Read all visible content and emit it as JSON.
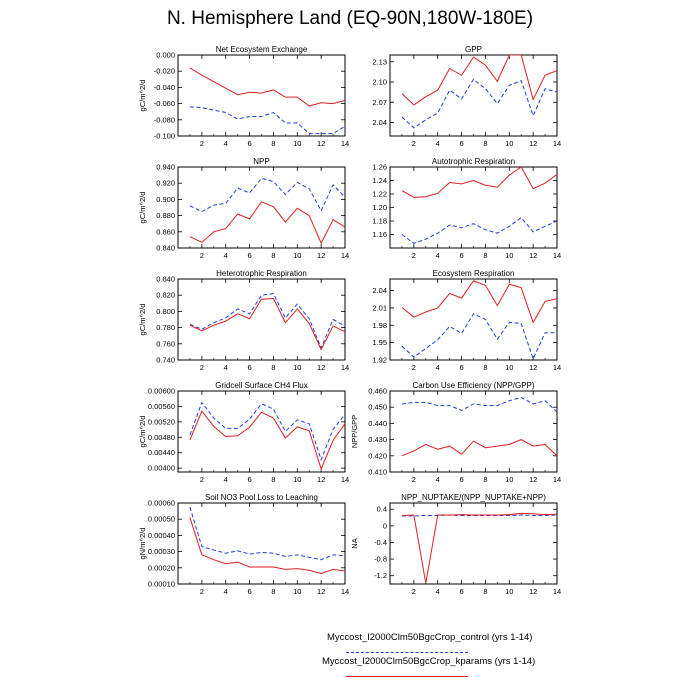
{
  "title": "N. Hemisphere Land (EQ-90N,180W-180E)",
  "colors": {
    "control": "#1f3fe0",
    "kparams": "#e01f1f"
  },
  "legend": {
    "control": "Myccost_I2000Clm50BgcCrop_control (yrs 1-14)",
    "kparams": "Myccost_I2000Clm50BgcCrop_kparams (yrs 1-14)"
  },
  "chart_data": [
    {
      "type": "line",
      "title": "Net Ecosystem Exchange",
      "ylabel": "gC/m^2/d",
      "xlabel": "",
      "xlim": [
        0,
        14
      ],
      "ylim": [
        -0.1,
        0.0
      ],
      "xticks": [
        2,
        4,
        6,
        8,
        10,
        12,
        14
      ],
      "xticklabels": [
        "2",
        "4",
        "6",
        "8",
        "10",
        "12",
        "14"
      ],
      "yticks": [
        -0.1,
        -0.08,
        -0.06,
        -0.04,
        -0.02,
        0.0
      ],
      "yticklabels": [
        "-0.100",
        "-0.080",
        "-0.060",
        "-0.040",
        "-0.020",
        "0.000"
      ],
      "x": [
        1,
        2,
        3,
        4,
        5,
        6,
        7,
        8,
        9,
        10,
        11,
        12,
        13,
        14
      ],
      "series": [
        {
          "name": "Myccost_I2000Clm50BgcCrop_control",
          "style": "dashed",
          "values": [
            -0.064,
            -0.065,
            -0.068,
            -0.071,
            -0.079,
            -0.076,
            -0.076,
            -0.071,
            -0.084,
            -0.084,
            -0.097,
            -0.097,
            -0.097,
            -0.088
          ]
        },
        {
          "name": "Myccost_I2000Clm50BgcCrop_kparams",
          "style": "solid",
          "values": [
            -0.016,
            -0.025,
            -0.033,
            -0.041,
            -0.049,
            -0.046,
            -0.047,
            -0.043,
            -0.052,
            -0.052,
            -0.063,
            -0.059,
            -0.06,
            -0.056
          ]
        }
      ]
    },
    {
      "type": "line",
      "title": "GPP",
      "ylabel": "",
      "xlabel": "",
      "xlim": [
        0,
        14
      ],
      "ylim": [
        2.02,
        2.14
      ],
      "xticks": [
        2,
        4,
        6,
        8,
        10,
        12,
        14
      ],
      "xticklabels": [
        "2",
        "4",
        "6",
        "8",
        "10",
        "12",
        "14"
      ],
      "yticks": [
        2.04,
        2.07,
        2.1,
        2.13
      ],
      "yticklabels": [
        "2.04",
        "2.07",
        "2.10",
        "2.13"
      ],
      "x": [
        1,
        2,
        3,
        4,
        5,
        6,
        7,
        8,
        9,
        10,
        11,
        12,
        13,
        14
      ],
      "series": [
        {
          "name": "Myccost_I2000Clm50BgcCrop_control",
          "style": "dashed",
          "values": [
            2.048,
            2.032,
            2.044,
            2.054,
            2.088,
            2.075,
            2.104,
            2.09,
            2.068,
            2.095,
            2.102,
            2.05,
            2.09,
            2.085
          ]
        },
        {
          "name": "Myccost_I2000Clm50BgcCrop_kparams",
          "style": "solid",
          "values": [
            2.083,
            2.066,
            2.078,
            2.088,
            2.12,
            2.11,
            2.137,
            2.125,
            2.101,
            2.14,
            2.14,
            2.074,
            2.11,
            2.117
          ]
        }
      ]
    },
    {
      "type": "line",
      "title": "NPP",
      "ylabel": "gC/m^2/d",
      "xlabel": "",
      "xlim": [
        0,
        14
      ],
      "ylim": [
        0.84,
        0.94
      ],
      "xticks": [
        2,
        4,
        6,
        8,
        10,
        12,
        14
      ],
      "xticklabels": [
        "2",
        "4",
        "6",
        "8",
        "10",
        "12",
        "14"
      ],
      "yticks": [
        0.84,
        0.86,
        0.88,
        0.9,
        0.92,
        0.94
      ],
      "yticklabels": [
        "0.840",
        "0.860",
        "0.880",
        "0.900",
        "0.920",
        "0.940"
      ],
      "x": [
        1,
        2,
        3,
        4,
        5,
        6,
        7,
        8,
        9,
        10,
        11,
        12,
        13,
        14
      ],
      "series": [
        {
          "name": "Myccost_I2000Clm50BgcCrop_control",
          "style": "dashed",
          "values": [
            0.892,
            0.885,
            0.893,
            0.895,
            0.914,
            0.908,
            0.926,
            0.922,
            0.906,
            0.921,
            0.913,
            0.886,
            0.918,
            0.903
          ]
        },
        {
          "name": "Myccost_I2000Clm50BgcCrop_kparams",
          "style": "solid",
          "values": [
            0.854,
            0.847,
            0.86,
            0.864,
            0.882,
            0.876,
            0.897,
            0.891,
            0.872,
            0.889,
            0.88,
            0.846,
            0.875,
            0.866
          ]
        }
      ]
    },
    {
      "type": "line",
      "title": "Autotrophic Respiration",
      "ylabel": "",
      "xlabel": "",
      "xlim": [
        0,
        14
      ],
      "ylim": [
        1.14,
        1.26
      ],
      "xticks": [
        2,
        4,
        6,
        8,
        10,
        12,
        14
      ],
      "xticklabels": [
        "2",
        "4",
        "6",
        "8",
        "10",
        "12",
        "14"
      ],
      "yticks": [
        1.16,
        1.18,
        1.2,
        1.22,
        1.24,
        1.26
      ],
      "yticklabels": [
        "1.16",
        "1.18",
        "1.20",
        "1.22",
        "1.24",
        "1.26"
      ],
      "x": [
        1,
        2,
        3,
        4,
        5,
        6,
        7,
        8,
        9,
        10,
        11,
        12,
        13,
        14
      ],
      "series": [
        {
          "name": "Myccost_I2000Clm50BgcCrop_control",
          "style": "dashed",
          "values": [
            1.16,
            1.147,
            1.153,
            1.162,
            1.174,
            1.17,
            1.176,
            1.167,
            1.162,
            1.172,
            1.185,
            1.164,
            1.172,
            1.18
          ]
        },
        {
          "name": "Myccost_I2000Clm50BgcCrop_kparams",
          "style": "solid",
          "values": [
            1.225,
            1.215,
            1.216,
            1.221,
            1.237,
            1.235,
            1.24,
            1.233,
            1.23,
            1.248,
            1.26,
            1.228,
            1.236,
            1.249
          ]
        }
      ]
    },
    {
      "type": "line",
      "title": "Heterotrophic Respiration",
      "ylabel": "gC/m^2/d",
      "xlabel": "",
      "xlim": [
        0,
        14
      ],
      "ylim": [
        0.74,
        0.84
      ],
      "xticks": [
        2,
        4,
        6,
        8,
        10,
        12,
        14
      ],
      "xticklabels": [
        "2",
        "4",
        "6",
        "8",
        "10",
        "12",
        "14"
      ],
      "yticks": [
        0.74,
        0.76,
        0.78,
        0.8,
        0.82,
        0.84
      ],
      "yticklabels": [
        "0.740",
        "0.760",
        "0.780",
        "0.800",
        "0.820",
        "0.840"
      ],
      "x": [
        1,
        2,
        3,
        4,
        5,
        6,
        7,
        8,
        9,
        10,
        11,
        12,
        13,
        14
      ],
      "series": [
        {
          "name": "Myccost_I2000Clm50BgcCrop_control",
          "style": "dashed",
          "values": [
            0.784,
            0.778,
            0.786,
            0.792,
            0.803,
            0.797,
            0.82,
            0.822,
            0.792,
            0.809,
            0.791,
            0.755,
            0.79,
            0.782
          ]
        },
        {
          "name": "Myccost_I2000Clm50BgcCrop_kparams",
          "style": "solid",
          "values": [
            0.783,
            0.776,
            0.783,
            0.788,
            0.797,
            0.791,
            0.815,
            0.816,
            0.786,
            0.803,
            0.785,
            0.753,
            0.782,
            0.775
          ]
        }
      ]
    },
    {
      "type": "line",
      "title": "Ecosystem Respiration",
      "ylabel": "",
      "xlabel": "",
      "xlim": [
        0,
        14
      ],
      "ylim": [
        1.92,
        2.06
      ],
      "xticks": [
        2,
        4,
        6,
        8,
        10,
        12,
        14
      ],
      "xticklabels": [
        "2",
        "4",
        "6",
        "8",
        "10",
        "12",
        "14"
      ],
      "yticks": [
        1.92,
        1.95,
        1.98,
        2.01,
        2.04
      ],
      "yticklabels": [
        "1.92",
        "1.95",
        "1.98",
        "2.01",
        "2.04"
      ],
      "x": [
        1,
        2,
        3,
        4,
        5,
        6,
        7,
        8,
        9,
        10,
        11,
        12,
        13,
        14
      ],
      "series": [
        {
          "name": "Myccost_I2000Clm50BgcCrop_control",
          "style": "dashed",
          "values": [
            1.944,
            1.925,
            1.94,
            1.955,
            1.978,
            1.966,
            2.0,
            1.99,
            1.956,
            1.985,
            1.983,
            1.922,
            1.967,
            1.967
          ]
        },
        {
          "name": "Myccost_I2000Clm50BgcCrop_kparams",
          "style": "solid",
          "values": [
            2.011,
            1.994,
            2.003,
            2.01,
            2.035,
            2.027,
            2.057,
            2.049,
            2.014,
            2.051,
            2.045,
            1.985,
            2.021,
            2.026
          ]
        }
      ]
    },
    {
      "type": "line",
      "title": "Gridcell Surface CH4 Flux",
      "ylabel": "gC/m^2/d",
      "xlabel": "",
      "xlim": [
        0,
        14
      ],
      "ylim": [
        0.0039,
        0.006
      ],
      "xticks": [
        2,
        4,
        6,
        8,
        10,
        12,
        14
      ],
      "xticklabels": [
        "2",
        "4",
        "6",
        "8",
        "10",
        "12",
        "14"
      ],
      "yticks": [
        0.004,
        0.0044,
        0.0048,
        0.0052,
        0.0056,
        0.006
      ],
      "yticklabels": [
        "0.00400",
        "0.00440",
        "0.00480",
        "0.00520",
        "0.00560",
        "0.00600"
      ],
      "x": [
        1,
        2,
        3,
        4,
        5,
        6,
        7,
        8,
        9,
        10,
        11,
        12,
        13,
        14
      ],
      "series": [
        {
          "name": "Myccost_I2000Clm50BgcCrop_control",
          "style": "dashed",
          "values": [
            0.00486,
            0.0057,
            0.0053,
            0.00503,
            0.00503,
            0.00527,
            0.00567,
            0.00553,
            0.00495,
            0.00525,
            0.00515,
            0.00422,
            0.005,
            0.0054
          ]
        },
        {
          "name": "Myccost_I2000Clm50BgcCrop_kparams",
          "style": "solid",
          "values": [
            0.00473,
            0.00548,
            0.00508,
            0.00482,
            0.00484,
            0.00506,
            0.00545,
            0.0053,
            0.00478,
            0.00507,
            0.00497,
            0.00398,
            0.00472,
            0.00515
          ]
        }
      ]
    },
    {
      "type": "line",
      "title": "Carbon Use Efficiency (NPP/GPP)",
      "ylabel": "NPP/GPP",
      "xlabel": "",
      "xlim": [
        0,
        14
      ],
      "ylim": [
        0.41,
        0.46
      ],
      "xticks": [
        2,
        4,
        6,
        8,
        10,
        12,
        14
      ],
      "xticklabels": [
        "2",
        "4",
        "6",
        "8",
        "10",
        "12",
        "14"
      ],
      "yticks": [
        0.41,
        0.42,
        0.43,
        0.44,
        0.45,
        0.46
      ],
      "yticklabels": [
        "0.410",
        "0.420",
        "0.430",
        "0.440",
        "0.450",
        "0.460"
      ],
      "x": [
        1,
        2,
        3,
        4,
        5,
        6,
        7,
        8,
        9,
        10,
        11,
        12,
        13,
        14
      ],
      "series": [
        {
          "name": "Myccost_I2000Clm50BgcCrop_control",
          "style": "dashed",
          "values": [
            0.452,
            0.453,
            0.453,
            0.451,
            0.451,
            0.448,
            0.452,
            0.451,
            0.451,
            0.454,
            0.456,
            0.452,
            0.454,
            0.447
          ]
        },
        {
          "name": "Myccost_I2000Clm50BgcCrop_kparams",
          "style": "solid",
          "values": [
            0.42,
            0.423,
            0.427,
            0.424,
            0.426,
            0.421,
            0.429,
            0.425,
            0.426,
            0.427,
            0.43,
            0.426,
            0.427,
            0.42
          ]
        }
      ]
    },
    {
      "type": "line",
      "title": "Soil NO3 Pool Loss to Leaching",
      "ylabel": "gN/m^2/d",
      "xlabel": "",
      "xlim": [
        0,
        14
      ],
      "ylim": [
        0.0001,
        0.0006
      ],
      "xticks": [
        2,
        4,
        6,
        8,
        10,
        12,
        14
      ],
      "xticklabels": [
        "2",
        "4",
        "6",
        "8",
        "10",
        "12",
        "14"
      ],
      "yticks": [
        0.0001,
        0.0002,
        0.0003,
        0.0004,
        0.0005,
        0.0006
      ],
      "yticklabels": [
        "0.00010",
        "0.00020",
        "0.00030",
        "0.00040",
        "0.00050",
        "0.00060"
      ],
      "x": [
        1,
        2,
        3,
        4,
        5,
        6,
        7,
        8,
        9,
        10,
        11,
        12,
        13,
        14
      ],
      "series": [
        {
          "name": "Myccost_I2000Clm50BgcCrop_control",
          "style": "dashed",
          "values": [
            0.000575,
            0.00033,
            0.00031,
            0.00029,
            0.000305,
            0.000285,
            0.000295,
            0.00029,
            0.00027,
            0.00028,
            0.000265,
            0.00025,
            0.00028,
            0.000275
          ]
        },
        {
          "name": "Myccost_I2000Clm50BgcCrop_kparams",
          "style": "solid",
          "values": [
            0.00051,
            0.00028,
            0.00025,
            0.000225,
            0.000235,
            0.000205,
            0.000205,
            0.000205,
            0.00019,
            0.000195,
            0.000185,
            0.000165,
            0.00019,
            0.00018
          ]
        }
      ]
    },
    {
      "type": "line",
      "title": "NPP_NUPTAKE/(NPP_NUPTAKE+NPP)",
      "ylabel": "NA",
      "xlabel": "",
      "xlim": [
        0,
        14
      ],
      "ylim": [
        -1.4,
        0.55
      ],
      "xticks": [
        2,
        4,
        6,
        8,
        10,
        12,
        14
      ],
      "xticklabels": [
        "2",
        "4",
        "6",
        "8",
        "10",
        "12",
        "14"
      ],
      "yticks": [
        -1.2,
        -0.8,
        -0.4,
        0.0,
        0.4
      ],
      "yticklabels": [
        "-1.2",
        "-0.8",
        "-0.4",
        "0",
        "0.4"
      ],
      "x": [
        1,
        2,
        3,
        4,
        5,
        6,
        7,
        8,
        9,
        10,
        11,
        12,
        13,
        14
      ],
      "series": [
        {
          "name": "Myccost_I2000Clm50BgcCrop_control",
          "style": "dashed",
          "values": [
            0.24,
            0.24,
            0.25,
            0.25,
            0.26,
            0.25,
            0.25,
            0.25,
            0.25,
            0.25,
            0.26,
            0.25,
            0.25,
            0.26
          ]
        },
        {
          "name": "Myccost_I2000Clm50BgcCrop_kparams",
          "style": "solid",
          "values": [
            0.25,
            0.26,
            -1.38,
            0.26,
            0.26,
            0.27,
            0.26,
            0.26,
            0.26,
            0.27,
            0.3,
            0.29,
            0.27,
            0.28
          ]
        }
      ]
    }
  ]
}
